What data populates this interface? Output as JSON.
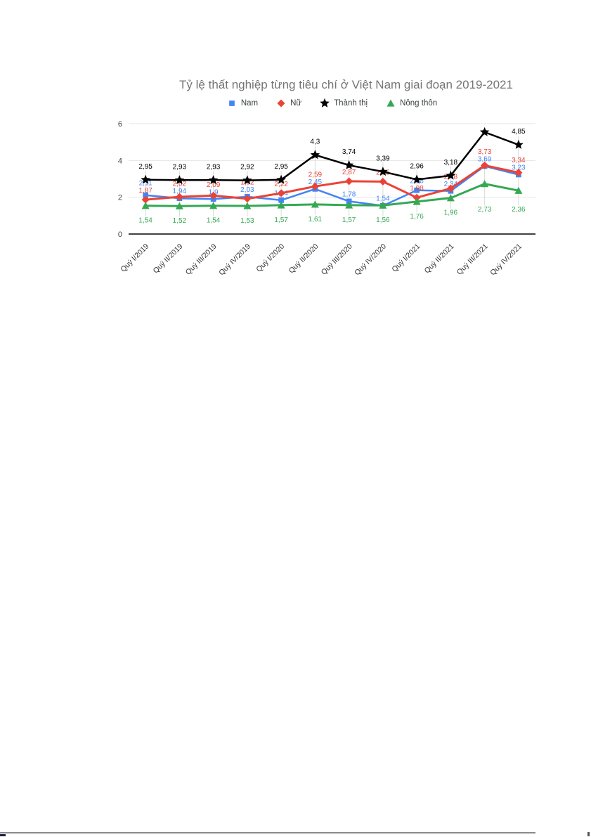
{
  "chart": {
    "title": "Tỷ lệ thất nghiệp từng tiêu chí ở Việt Nam giai đoạn 2019-2021"
  },
  "chart_data": {
    "type": "line",
    "title": "Tỷ lệ thất nghiệp từng tiêu chí ở Việt Nam giai đoạn 2019-2021",
    "xlabel": "",
    "ylabel": "",
    "ylim": [
      0,
      6
    ],
    "yticks": [
      0,
      2,
      4,
      6
    ],
    "grid": true,
    "legend_position": "top",
    "categories": [
      "Quý I/2019",
      "Quý II/2019",
      "Quý III/2019",
      "Quý IV/2019",
      "Quý I/2020",
      "Quý II/2020",
      "Quý III/2020",
      "Quý IV/2020",
      "Quý I/2021",
      "Quý II/2021",
      "Quý III/2021",
      "Quý IV/2021"
    ],
    "series": [
      {
        "id": "nam",
        "name": "Nam",
        "color": "#4285F4",
        "marker": "square",
        "values": [
          2.11,
          1.94,
          1.9,
          2.03,
          1.84,
          2.45,
          1.78,
          1.54,
          2.38,
          2.34,
          3.69,
          3.23
        ],
        "labels": [
          "2,11",
          "1,94",
          "1,9",
          "2,03",
          "1,84",
          "2,45",
          "1,78",
          "1,54",
          "2,38",
          "2,34",
          "3,69",
          "3,23"
        ]
      },
      {
        "id": "nu",
        "name": "Nữ",
        "color": "#EA4335",
        "marker": "diamond",
        "values": [
          1.87,
          2.02,
          2.09,
          1.92,
          2.22,
          2.59,
          2.87,
          2.85,
          1.98,
          2.48,
          3.73,
          3.34
        ],
        "labels": [
          "1,87",
          "2,02",
          "2,09",
          "1,92",
          "2,22",
          "2,59",
          "2,87",
          "2,85",
          "1,98",
          "2,48",
          "3,73",
          "3,34"
        ]
      },
      {
        "id": "thanh-thi",
        "name": "Thành thị",
        "color": "#000000",
        "marker": "star",
        "values": [
          2.95,
          2.93,
          2.93,
          2.92,
          2.95,
          4.3,
          3.74,
          3.39,
          2.96,
          3.18,
          5.54,
          4.85
        ],
        "labels": [
          "2,95",
          "2,93",
          "2,93",
          "2,92",
          "2,95",
          "4,3",
          "3,74",
          "3,39",
          "2,96",
          "3,18",
          "",
          "4,85"
        ]
      },
      {
        "id": "nong-thon",
        "name": "Nông thôn",
        "color": "#34A853",
        "marker": "triangle",
        "values": [
          1.54,
          1.52,
          1.54,
          1.53,
          1.57,
          1.61,
          1.57,
          1.56,
          1.76,
          1.96,
          2.73,
          2.36
        ],
        "labels": [
          "1,54",
          "1,52",
          "1,54",
          "1,53",
          "1,57",
          "1,61",
          "1,57",
          "1,56",
          "1,76",
          "1,96",
          "2,73",
          "2,36"
        ]
      }
    ]
  }
}
